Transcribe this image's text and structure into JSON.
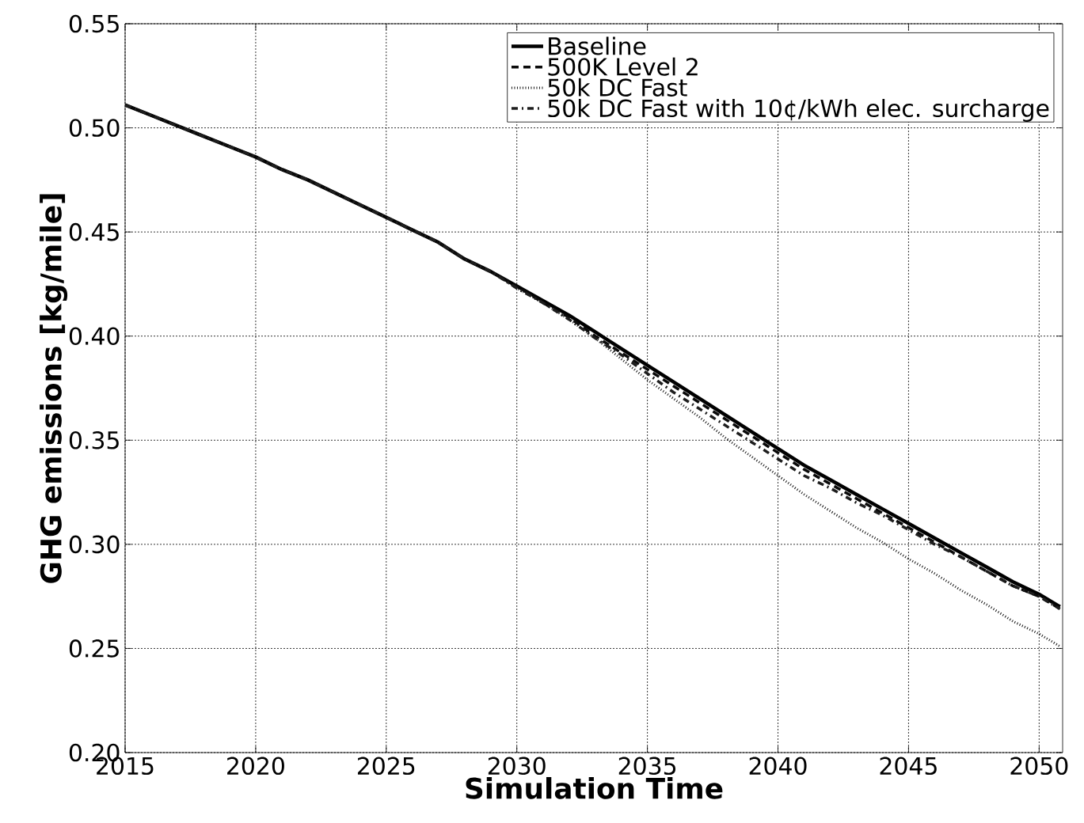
{
  "chart_data": {
    "type": "line",
    "xlabel": "Simulation Time",
    "ylabel": "GHG emissions [kg/mile]",
    "x": [
      2015,
      2016,
      2017,
      2018,
      2019,
      2020,
      2021,
      2022,
      2023,
      2024,
      2025,
      2026,
      2027,
      2028,
      2029,
      2030,
      2031,
      2032,
      2033,
      2034,
      2035,
      2036,
      2037,
      2038,
      2039,
      2040,
      2041,
      2042,
      2043,
      2044,
      2045,
      2046,
      2047,
      2048,
      2049,
      2050,
      2050.8
    ],
    "series": [
      {
        "name": "Baseline",
        "color": "#000000",
        "line_style": "solid",
        "values": [
          0.511,
          0.506,
          0.501,
          0.496,
          0.491,
          0.486,
          0.48,
          0.475,
          0.469,
          0.463,
          0.457,
          0.451,
          0.445,
          0.437,
          0.431,
          0.424,
          0.417,
          0.41,
          0.402,
          0.394,
          0.386,
          0.378,
          0.37,
          0.362,
          0.354,
          0.346,
          0.338,
          0.331,
          0.324,
          0.317,
          0.31,
          0.303,
          0.296,
          0.289,
          0.282,
          0.276,
          0.27
        ]
      },
      {
        "name": "500K Level 2",
        "color": "#0a0a0a",
        "line_style": "dashed",
        "values": [
          0.511,
          0.506,
          0.501,
          0.496,
          0.491,
          0.486,
          0.48,
          0.475,
          0.469,
          0.463,
          0.457,
          0.451,
          0.445,
          0.437,
          0.431,
          0.424,
          0.416,
          0.409,
          0.4,
          0.392,
          0.384,
          0.376,
          0.368,
          0.36,
          0.352,
          0.344,
          0.336,
          0.329,
          0.322,
          0.315,
          0.308,
          0.301,
          0.294,
          0.287,
          0.28,
          0.275,
          0.269
        ]
      },
      {
        "name": "50k DC Fast",
        "color": "#141414",
        "line_style": "dotted",
        "values": [
          0.511,
          0.506,
          0.501,
          0.496,
          0.491,
          0.486,
          0.48,
          0.475,
          0.469,
          0.463,
          0.457,
          0.451,
          0.445,
          0.437,
          0.431,
          0.423,
          0.416,
          0.408,
          0.399,
          0.389,
          0.379,
          0.37,
          0.361,
          0.351,
          0.342,
          0.333,
          0.324,
          0.316,
          0.308,
          0.301,
          0.293,
          0.286,
          0.278,
          0.271,
          0.263,
          0.257,
          0.251
        ]
      },
      {
        "name": "50k DC Fast with 10¢/kWh elec. surcharge",
        "color": "#1e1e1e",
        "line_style": "dashdot",
        "values": [
          0.511,
          0.506,
          0.501,
          0.496,
          0.491,
          0.486,
          0.48,
          0.475,
          0.469,
          0.463,
          0.457,
          0.451,
          0.445,
          0.437,
          0.431,
          0.423,
          0.416,
          0.408,
          0.399,
          0.391,
          0.382,
          0.373,
          0.365,
          0.357,
          0.349,
          0.341,
          0.333,
          0.327,
          0.32,
          0.314,
          0.307,
          0.3,
          0.294,
          0.287,
          0.28,
          0.275,
          0.269
        ]
      }
    ],
    "xlim": [
      2015,
      2050.9
    ],
    "ylim": [
      0.2,
      0.55
    ],
    "xticks": [
      2015,
      2020,
      2025,
      2030,
      2035,
      2040,
      2045,
      2050
    ],
    "yticks": [
      {
        "value": 0.2,
        "label": "0.20"
      },
      {
        "value": 0.25,
        "label": "0.25"
      },
      {
        "value": 0.3,
        "label": "0.30"
      },
      {
        "value": 0.35,
        "label": "0.35"
      },
      {
        "value": 0.4,
        "label": "0.40"
      },
      {
        "value": 0.45,
        "label": "0.45"
      },
      {
        "value": 0.5,
        "label": "0.50"
      },
      {
        "value": 0.55,
        "label": "0.55"
      }
    ],
    "grid": true,
    "legend": "top right"
  }
}
